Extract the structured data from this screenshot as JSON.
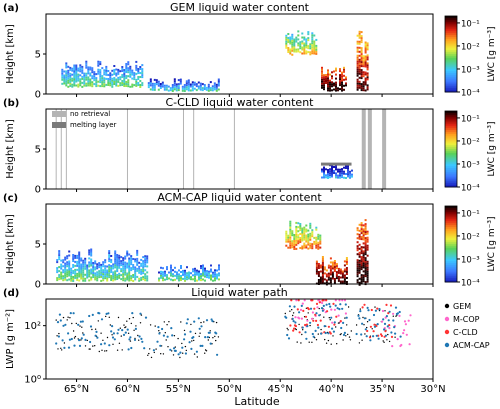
{
  "chart_data": [
    {
      "type": "heatmap",
      "panel_label": "(a)",
      "title": "GEM liquid water content",
      "ylabel": "Height [km]",
      "yticks": [
        "0",
        "5"
      ],
      "ylim": [
        0,
        10
      ],
      "colorbar": {
        "label": "LWC [g m⁻³]",
        "ticks": [
          "10⁻¹",
          "10⁻²",
          "10⁻³",
          "10⁻⁴"
        ],
        "range": [
          0.0001,
          0.2
        ],
        "scale": "log"
      },
      "regions": [
        {
          "lat_start": 66.5,
          "lat_end": 58.5,
          "height_bottom": 1.0,
          "height_top": 4.2,
          "lwc": 0.001
        },
        {
          "lat_start": 58,
          "lat_end": 51,
          "height_bottom": 0.5,
          "height_top": 2.0,
          "lwc": 0.0005
        },
        {
          "lat_start": 44.5,
          "lat_end": 41.5,
          "height_bottom": 5.0,
          "height_top": 8.0,
          "lwc": 0.005
        },
        {
          "lat_start": 41,
          "lat_end": 38.5,
          "height_bottom": 0.5,
          "height_top": 3.5,
          "lwc": 0.1
        },
        {
          "lat_start": 37.5,
          "lat_end": 36.5,
          "height_bottom": 0.5,
          "height_top": 8.5,
          "lwc": 0.05
        }
      ]
    },
    {
      "type": "heatmap",
      "panel_label": "(b)",
      "title": "C-CLD liquid water content",
      "ylabel": "Height [km]",
      "yticks": [
        "0",
        "5"
      ],
      "ylim": [
        0,
        10
      ],
      "legend": [
        {
          "label": "no retrieval",
          "color": "#b4b4b4"
        },
        {
          "label": "melting layer",
          "color": "#7a7a7a"
        }
      ],
      "colorbar": {
        "label": "LWC [g m⁻³]",
        "ticks": [
          "10⁻¹",
          "10⁻²",
          "10⁻³",
          "10⁻⁴"
        ],
        "range": [
          0.0001,
          0.2
        ],
        "scale": "log"
      },
      "no_retrieval_lat": [
        67,
        66.5,
        66,
        60,
        54.5,
        53.5,
        49.5,
        36.8,
        36.2,
        34.8
      ],
      "regions": [
        {
          "lat_start": 41,
          "lat_end": 38,
          "height_bottom": 1.5,
          "height_top": 3.3,
          "lwc": 0.0002
        }
      ]
    },
    {
      "type": "heatmap",
      "panel_label": "(c)",
      "title": "ACM-CAP liquid water content",
      "ylabel": "Height [km]",
      "yticks": [
        "0",
        "5"
      ],
      "ylim": [
        0,
        10
      ],
      "colorbar": {
        "label": "LWC [g m⁻³]",
        "ticks": [
          "10⁻¹",
          "10⁻²",
          "10⁻³",
          "10⁻⁴"
        ],
        "range": [
          0.0001,
          0.2
        ],
        "scale": "log"
      },
      "regions": [
        {
          "lat_start": 67,
          "lat_end": 58,
          "height_bottom": 0.5,
          "height_top": 4.5,
          "lwc": 0.001
        },
        {
          "lat_start": 57,
          "lat_end": 51,
          "height_bottom": 0.5,
          "height_top": 2.5,
          "lwc": 0.001
        },
        {
          "lat_start": 44.5,
          "lat_end": 41,
          "height_bottom": 4.5,
          "height_top": 8.0,
          "lwc": 0.01
        },
        {
          "lat_start": 41.5,
          "lat_end": 38.5,
          "height_bottom": 0.0,
          "height_top": 3.5,
          "lwc": 0.1
        },
        {
          "lat_start": 37.5,
          "lat_end": 36.5,
          "height_bottom": 0.0,
          "height_top": 8.5,
          "lwc": 0.1
        }
      ]
    },
    {
      "type": "scatter",
      "panel_label": "(d)",
      "title": "Liquid water path",
      "xlabel": "Latitude",
      "ylabel": "LWP [g m⁻²]",
      "yscale": "log",
      "ylim": [
        1,
        1000
      ],
      "yticks": [
        "10⁰",
        "10²"
      ],
      "xlim": [
        68,
        30
      ],
      "xticks": [
        65,
        60,
        55,
        50,
        45,
        40,
        35,
        30
      ],
      "xticklabels": [
        "65°N",
        "60°N",
        "55°N",
        "50°N",
        "45°N",
        "40°N",
        "35°N",
        "30°N"
      ],
      "legend_position": "right",
      "series": [
        {
          "name": "GEM",
          "color": "#000000",
          "segments": [
            [
              67,
              58.5,
              1.7
            ],
            [
              58,
              51,
              1.5
            ],
            [
              44.5,
              38,
              2.0
            ],
            [
              37.5,
              33.5,
              2.0
            ]
          ]
        },
        {
          "name": "M-COP",
          "color": "#ff66cc",
          "segments": [
            [
              43.5,
              38.5,
              2.6
            ],
            [
              35,
              32,
              1.9
            ]
          ]
        },
        {
          "name": "C-CLD",
          "color": "#ff3333",
          "segments": [
            [
              44,
              39,
              2.4
            ],
            [
              37,
              34,
              2.1
            ]
          ]
        },
        {
          "name": "ACM-CAP",
          "color": "#1f77b4",
          "segments": [
            [
              67,
              58,
              1.8
            ],
            [
              57.5,
              51,
              1.6
            ],
            [
              44.5,
              38,
              2.2
            ],
            [
              37.5,
              33,
              2.0
            ]
          ]
        }
      ]
    }
  ]
}
